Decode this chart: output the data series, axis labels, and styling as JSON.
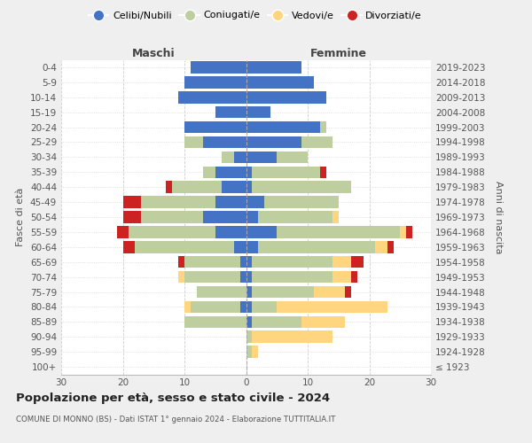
{
  "age_groups": [
    "100+",
    "95-99",
    "90-94",
    "85-89",
    "80-84",
    "75-79",
    "70-74",
    "65-69",
    "60-64",
    "55-59",
    "50-54",
    "45-49",
    "40-44",
    "35-39",
    "30-34",
    "25-29",
    "20-24",
    "15-19",
    "10-14",
    "5-9",
    "0-4"
  ],
  "birth_years": [
    "≤ 1923",
    "1924-1928",
    "1929-1933",
    "1934-1938",
    "1939-1943",
    "1944-1948",
    "1949-1953",
    "1954-1958",
    "1959-1963",
    "1964-1968",
    "1969-1973",
    "1974-1978",
    "1979-1983",
    "1984-1988",
    "1989-1993",
    "1994-1998",
    "1999-2003",
    "2004-2008",
    "2009-2013",
    "2014-2018",
    "2019-2023"
  ],
  "colors": {
    "celibe": "#4472C4",
    "coniugato": "#BFCE9E",
    "vedovo": "#FFD580",
    "divorziato": "#CC2222"
  },
  "males": {
    "celibe": [
      0,
      0,
      0,
      0,
      1,
      0,
      1,
      1,
      2,
      5,
      7,
      5,
      4,
      5,
      2,
      7,
      10,
      5,
      11,
      10,
      9
    ],
    "coniugato": [
      0,
      0,
      0,
      10,
      8,
      8,
      9,
      9,
      16,
      14,
      10,
      12,
      8,
      2,
      2,
      3,
      0,
      0,
      0,
      0,
      0
    ],
    "vedovo": [
      0,
      0,
      0,
      0,
      1,
      0,
      1,
      0,
      0,
      0,
      0,
      0,
      0,
      0,
      0,
      0,
      0,
      0,
      0,
      0,
      0
    ],
    "divorziato": [
      0,
      0,
      0,
      0,
      0,
      0,
      0,
      1,
      2,
      2,
      3,
      3,
      1,
      0,
      0,
      0,
      0,
      0,
      0,
      0,
      0
    ]
  },
  "females": {
    "celibe": [
      0,
      0,
      0,
      1,
      1,
      1,
      1,
      1,
      2,
      5,
      2,
      3,
      1,
      1,
      5,
      9,
      12,
      4,
      13,
      11,
      9
    ],
    "coniugato": [
      0,
      1,
      1,
      8,
      4,
      10,
      13,
      13,
      19,
      20,
      12,
      12,
      16,
      11,
      5,
      5,
      1,
      0,
      0,
      0,
      0
    ],
    "vedovo": [
      0,
      1,
      13,
      7,
      18,
      5,
      3,
      3,
      2,
      1,
      1,
      0,
      0,
      0,
      0,
      0,
      0,
      0,
      0,
      0,
      0
    ],
    "divorziato": [
      0,
      0,
      0,
      0,
      0,
      1,
      1,
      2,
      1,
      1,
      0,
      0,
      0,
      1,
      0,
      0,
      0,
      0,
      0,
      0,
      0
    ]
  },
  "title": "Popolazione per età, sesso e stato civile - 2024",
  "subtitle": "COMUNE DI MONNO (BS) - Dati ISTAT 1° gennaio 2024 - Elaborazione TUTTITALIA.IT",
  "ylabel_left": "Fasce di età",
  "ylabel_right": "Anni di nascita",
  "header_left": "Maschi",
  "header_right": "Femmine",
  "xlim": 30,
  "legend_labels": [
    "Celibi/Nubili",
    "Coniugati/e",
    "Vedovi/e",
    "Divorziati/e"
  ],
  "bg_color": "#efefef",
  "plot_bg": "#ffffff"
}
